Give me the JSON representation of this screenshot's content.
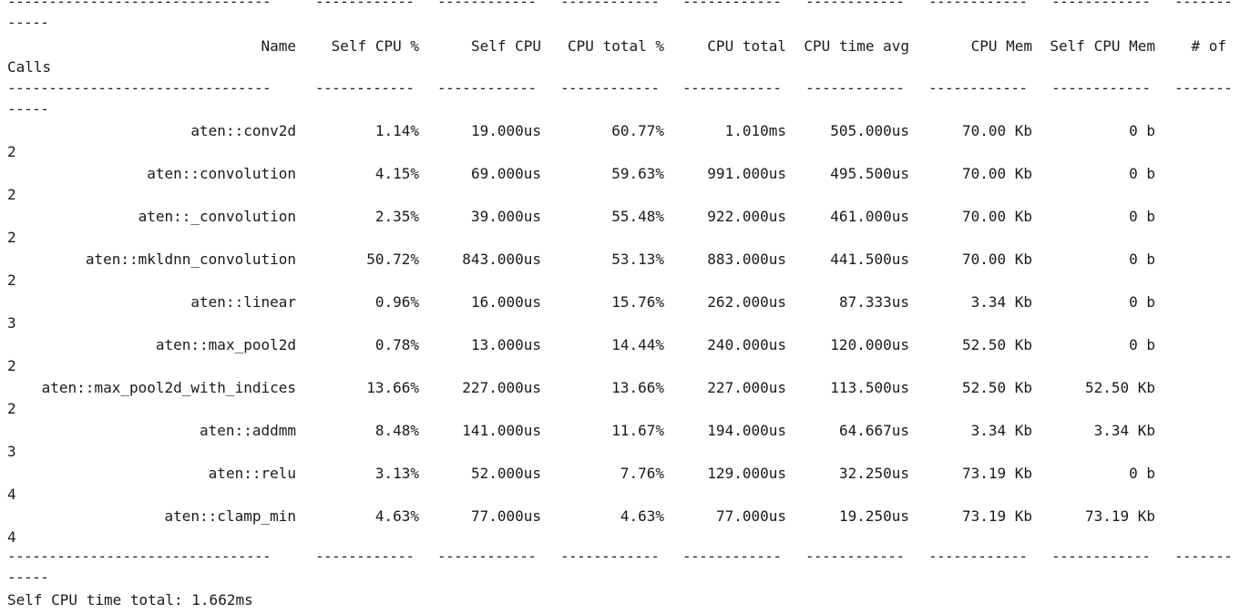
{
  "header": {
    "name": "Name",
    "self_cpu_pct": "Self CPU %",
    "self_cpu": "Self CPU",
    "cpu_total_pct": "CPU total %",
    "cpu_total": "CPU total",
    "cpu_time_avg": "CPU time avg",
    "cpu_mem": "CPU Mem",
    "self_cpu_mem": "Self CPU Mem",
    "num_of": "# of",
    "calls": "Calls"
  },
  "rows": [
    {
      "name": "aten::conv2d",
      "self_cpu_pct": "1.14%",
      "self_cpu": "19.000us",
      "cpu_total_pct": "60.77%",
      "cpu_total": "1.010ms",
      "cpu_time_avg": "505.000us",
      "cpu_mem": "70.00 Kb",
      "self_cpu_mem": "0 b",
      "calls": "2"
    },
    {
      "name": "aten::convolution",
      "self_cpu_pct": "4.15%",
      "self_cpu": "69.000us",
      "cpu_total_pct": "59.63%",
      "cpu_total": "991.000us",
      "cpu_time_avg": "495.500us",
      "cpu_mem": "70.00 Kb",
      "self_cpu_mem": "0 b",
      "calls": "2"
    },
    {
      "name": "aten::_convolution",
      "self_cpu_pct": "2.35%",
      "self_cpu": "39.000us",
      "cpu_total_pct": "55.48%",
      "cpu_total": "922.000us",
      "cpu_time_avg": "461.000us",
      "cpu_mem": "70.00 Kb",
      "self_cpu_mem": "0 b",
      "calls": "2"
    },
    {
      "name": "aten::mkldnn_convolution",
      "self_cpu_pct": "50.72%",
      "self_cpu": "843.000us",
      "cpu_total_pct": "53.13%",
      "cpu_total": "883.000us",
      "cpu_time_avg": "441.500us",
      "cpu_mem": "70.00 Kb",
      "self_cpu_mem": "0 b",
      "calls": "2"
    },
    {
      "name": "aten::linear",
      "self_cpu_pct": "0.96%",
      "self_cpu": "16.000us",
      "cpu_total_pct": "15.76%",
      "cpu_total": "262.000us",
      "cpu_time_avg": "87.333us",
      "cpu_mem": "3.34 Kb",
      "self_cpu_mem": "0 b",
      "calls": "3"
    },
    {
      "name": "aten::max_pool2d",
      "self_cpu_pct": "0.78%",
      "self_cpu": "13.000us",
      "cpu_total_pct": "14.44%",
      "cpu_total": "240.000us",
      "cpu_time_avg": "120.000us",
      "cpu_mem": "52.50 Kb",
      "self_cpu_mem": "0 b",
      "calls": "2"
    },
    {
      "name": "aten::max_pool2d_with_indices",
      "self_cpu_pct": "13.66%",
      "self_cpu": "227.000us",
      "cpu_total_pct": "13.66%",
      "cpu_total": "227.000us",
      "cpu_time_avg": "113.500us",
      "cpu_mem": "52.50 Kb",
      "self_cpu_mem": "52.50 Kb",
      "calls": "2"
    },
    {
      "name": "aten::addmm",
      "self_cpu_pct": "8.48%",
      "self_cpu": "141.000us",
      "cpu_total_pct": "11.67%",
      "cpu_total": "194.000us",
      "cpu_time_avg": "64.667us",
      "cpu_mem": "3.34 Kb",
      "self_cpu_mem": "3.34 Kb",
      "calls": "3"
    },
    {
      "name": "aten::relu",
      "self_cpu_pct": "3.13%",
      "self_cpu": "52.000us",
      "cpu_total_pct": "7.76%",
      "cpu_total": "129.000us",
      "cpu_time_avg": "32.250us",
      "cpu_mem": "73.19 Kb",
      "self_cpu_mem": "0 b",
      "calls": "4"
    },
    {
      "name": "aten::clamp_min",
      "self_cpu_pct": "4.63%",
      "self_cpu": "77.000us",
      "cpu_total_pct": "4.63%",
      "cpu_total": "77.000us",
      "cpu_time_avg": "19.250us",
      "cpu_mem": "73.19 Kb",
      "self_cpu_mem": "73.19 Kb",
      "calls": "4"
    }
  ],
  "separator": {
    "name_col": "--------------------------------",
    "col": "------------",
    "last_col": "-------",
    "wrap": "-----"
  },
  "footer": {
    "self_cpu_time_total": "Self CPU time total: 1.662ms"
  }
}
